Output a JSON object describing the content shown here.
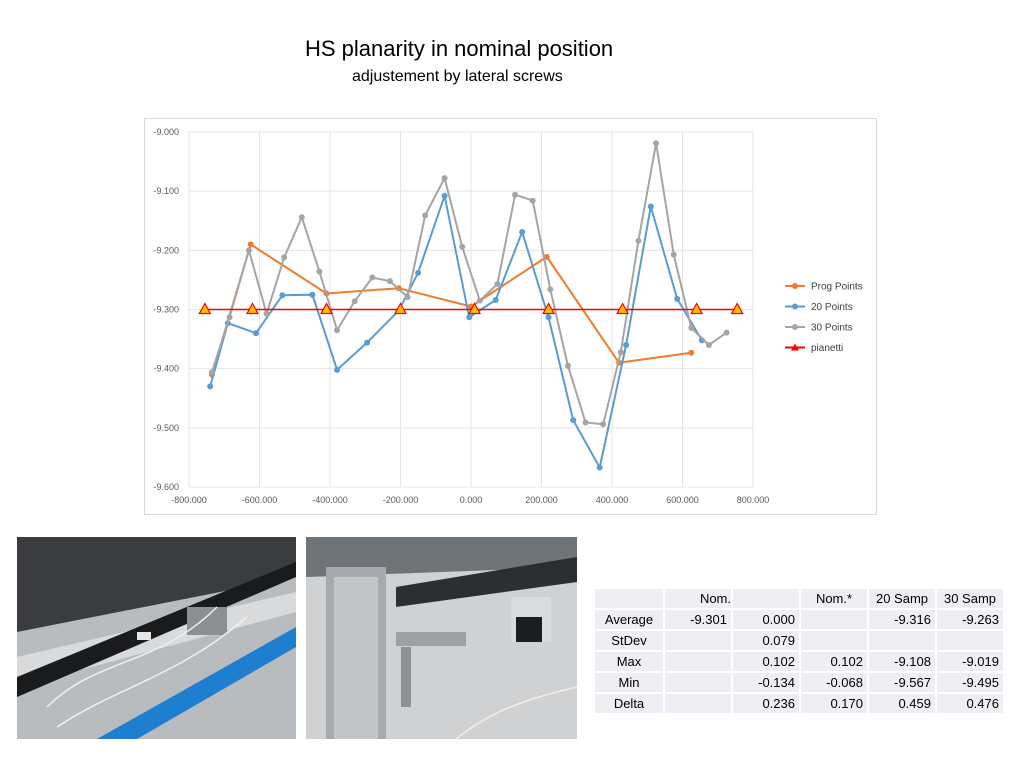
{
  "header": {
    "title": "HS planarity in nominal position",
    "subtitle": "adjustement by lateral screws"
  },
  "chart_data": {
    "type": "line",
    "title": "",
    "xlabel": "",
    "ylabel": "",
    "xlim": [
      -800,
      800
    ],
    "ylim": [
      -9.6,
      -9.0
    ],
    "x_ticks": [
      "-800.000",
      "-600.000",
      "-400.000",
      "-200.000",
      "0.000",
      "200.000",
      "400.000",
      "600.000",
      "800.000"
    ],
    "y_ticks": [
      "-9.000",
      "-9.100",
      "-9.200",
      "-9.300",
      "-9.400",
      "-9.500",
      "-9.600"
    ],
    "grid": true,
    "legend_position": "right",
    "series": [
      {
        "name": "Prog Points",
        "color": "#ed7d31",
        "marker": "circle",
        "points": [
          [
            -735,
            -9.41
          ],
          [
            -625,
            -9.19
          ],
          [
            -410,
            -9.273
          ],
          [
            -205,
            -9.264
          ],
          [
            0,
            -9.295
          ],
          [
            215,
            -9.211
          ],
          [
            420,
            -9.39
          ],
          [
            625,
            -9.373
          ]
        ]
      },
      {
        "name": "20 Points",
        "color": "#5b9bd5",
        "marker": "circle",
        "points": [
          [
            -740,
            -9.43
          ],
          [
            -690,
            -9.323
          ],
          [
            -610,
            -9.34
          ],
          [
            -535,
            -9.276
          ],
          [
            -450,
            -9.275
          ],
          [
            -380,
            -9.402
          ],
          [
            -295,
            -9.356
          ],
          [
            -205,
            -9.302
          ],
          [
            -150,
            -9.238
          ],
          [
            -75,
            -9.108
          ],
          [
            -5,
            -9.313
          ],
          [
            70,
            -9.284
          ],
          [
            145,
            -9.169
          ],
          [
            220,
            -9.313
          ],
          [
            290,
            -9.487
          ],
          [
            365,
            -9.567
          ],
          [
            440,
            -9.36
          ],
          [
            510,
            -9.126
          ],
          [
            585,
            -9.282
          ],
          [
            655,
            -9.352
          ]
        ]
      },
      {
        "name": "30 Points",
        "color": "#a5a5a5",
        "marker": "circle",
        "points": [
          [
            -735,
            -9.406
          ],
          [
            -685,
            -9.313
          ],
          [
            -630,
            -9.2
          ],
          [
            -580,
            -9.307
          ],
          [
            -530,
            -9.212
          ],
          [
            -480,
            -9.144
          ],
          [
            -430,
            -9.236
          ],
          [
            -380,
            -9.335
          ],
          [
            -330,
            -9.286
          ],
          [
            -280,
            -9.246
          ],
          [
            -230,
            -9.252
          ],
          [
            -180,
            -9.279
          ],
          [
            -130,
            -9.141
          ],
          [
            -75,
            -9.078
          ],
          [
            -25,
            -9.194
          ],
          [
            25,
            -9.285
          ],
          [
            75,
            -9.257
          ],
          [
            125,
            -9.106
          ],
          [
            175,
            -9.116
          ],
          [
            225,
            -9.266
          ],
          [
            275,
            -9.395
          ],
          [
            325,
            -9.491
          ],
          [
            375,
            -9.494
          ],
          [
            425,
            -9.372
          ],
          [
            475,
            -9.184
          ],
          [
            525,
            -9.019
          ],
          [
            575,
            -9.207
          ],
          [
            625,
            -9.331
          ],
          [
            675,
            -9.36
          ],
          [
            725,
            -9.339
          ]
        ]
      },
      {
        "name": "pianetti",
        "color": "#ff0000",
        "marker": "triangle",
        "marker_fill": "#ffc000",
        "points": [
          [
            -755,
            -9.3
          ],
          [
            -620,
            -9.3
          ],
          [
            -410,
            -9.3
          ],
          [
            -200,
            -9.3
          ],
          [
            10,
            -9.3
          ],
          [
            220,
            -9.3
          ],
          [
            430,
            -9.3
          ],
          [
            640,
            -9.3
          ],
          [
            755,
            -9.3
          ]
        ]
      }
    ]
  },
  "photos": [
    {
      "icon": "photo-icon",
      "alt": "photo-left"
    },
    {
      "icon": "photo-icon",
      "alt": "photo-right"
    }
  ],
  "table": {
    "headers": [
      "",
      "Nom.",
      "",
      "Nom.*",
      "20 Samp",
      "30 Samp"
    ],
    "rows": [
      {
        "label": "Average",
        "cells": [
          "-9.301",
          "0.000",
          "",
          "-9.316",
          "-9.263"
        ]
      },
      {
        "label": "StDev",
        "cells": [
          "",
          "0.079",
          "",
          "",
          ""
        ]
      },
      {
        "label": "Max",
        "cells": [
          "",
          "0.102",
          "0.102",
          "-9.108",
          "-9.019"
        ]
      },
      {
        "label": "Min",
        "cells": [
          "",
          "-0.134",
          "-0.068",
          "-9.567",
          "-9.495"
        ]
      },
      {
        "label": "Delta",
        "cells": [
          "",
          "0.236",
          "0.170",
          "0.459",
          "0.476"
        ]
      }
    ]
  }
}
